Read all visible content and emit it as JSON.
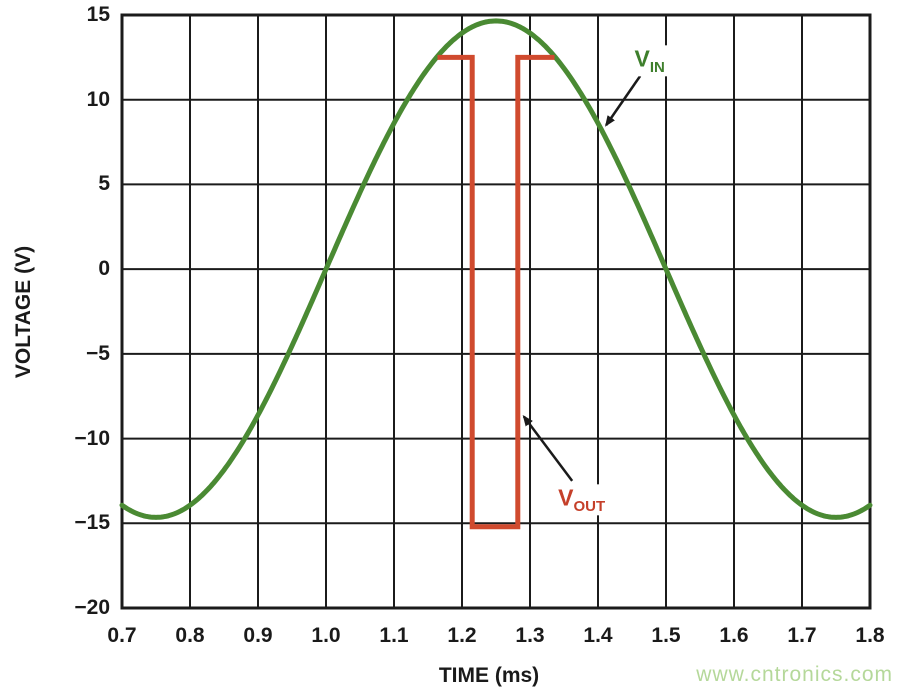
{
  "chart_data": {
    "type": "line",
    "title": "",
    "xlabel": "TIME (ms)",
    "ylabel": "VOLTAGE (V)",
    "xlim": [
      0.7,
      1.8
    ],
    "ylim": [
      -20,
      15
    ],
    "grid": true,
    "legend_position": "none",
    "x_ticks": [
      "0.7",
      "0.8",
      "0.9",
      "1.0",
      "1.1",
      "1.2",
      "1.3",
      "1.4",
      "1.5",
      "1.6",
      "1.7",
      "1.8"
    ],
    "y_ticks": [
      "15",
      "10",
      "5",
      "0",
      "−5",
      "−10",
      "−15",
      "−20"
    ],
    "colors": {
      "vin": "#4a8a33",
      "vout": "#d04a2e",
      "grid": "#1b1b1b",
      "text": "#1a1a1a",
      "arrow": "#1a1a1a"
    },
    "series": [
      {
        "name": "VIN",
        "kind": "sine",
        "color": "#4a8a33",
        "amplitude_V": 14.65,
        "offset_V": 0,
        "period_ms": 1.0,
        "zero_crossing_rising_ms": 1.0,
        "x_range_ms": [
          0.7,
          1.8
        ]
      },
      {
        "name": "VOUT",
        "kind": "polyline",
        "color": "#d04a2e",
        "points_ms_V": [
          [
            1.164,
            12.5
          ],
          [
            1.215,
            12.5
          ],
          [
            1.215,
            -15.2
          ],
          [
            1.282,
            -15.2
          ],
          [
            1.282,
            12.5
          ],
          [
            1.336,
            12.5
          ]
        ]
      }
    ],
    "annotations": [
      {
        "id": "vin",
        "main": "V",
        "sub": "IN",
        "color": "#3e7f2c",
        "label_at": {
          "t": 1.476,
          "v": 12.3
        },
        "arrow": {
          "from": {
            "t": 1.462,
            "v": 11.4
          },
          "to": {
            "t": 1.412,
            "v": 8.5
          }
        }
      },
      {
        "id": "vout",
        "main": "V",
        "sub": "OUT",
        "color": "#c5402a",
        "label_at": {
          "t": 1.376,
          "v": -13.6
        },
        "arrow": {
          "from": {
            "t": 1.362,
            "v": -12.5
          },
          "to": {
            "t": 1.291,
            "v": -8.7
          }
        }
      }
    ]
  },
  "watermark": {
    "text": "www.cntronics.com",
    "color": "#b5d89a"
  }
}
